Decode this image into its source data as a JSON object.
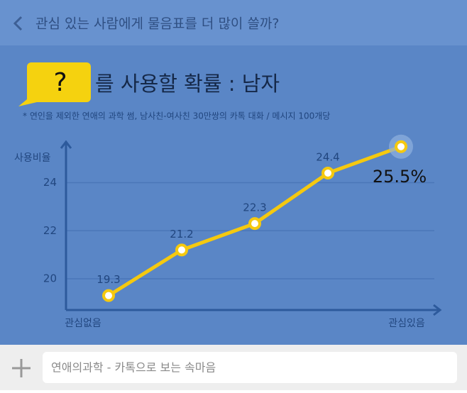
{
  "header": {
    "title": "관심 있는 사람에게 물음표를 더 많이 쓸까?"
  },
  "chart_data": {
    "type": "line",
    "title_mark": "?",
    "title": "를 사용할 확률 : 남자",
    "subtitle": "* 연인을 제외한 연애의 과학 썸, 남사친-여사친 30만쌍의 카톡 대화 / 메시지 100개당",
    "y_label": "사용비율",
    "categories": [
      "관심없음",
      null,
      null,
      null,
      "관심있음"
    ],
    "values": [
      19.3,
      21.2,
      22.3,
      24.4,
      25.5
    ],
    "value_labels": [
      "19.3",
      "21.2",
      "22.3",
      "24.4",
      "25.5%"
    ],
    "color": "#f5c90f",
    "ylim": [
      18.7,
      25.7
    ],
    "yticks": [
      20,
      22,
      24
    ],
    "grid": true
  },
  "input": {
    "placeholder": "연애의과학 - 카톡으로 보는 속마음"
  }
}
